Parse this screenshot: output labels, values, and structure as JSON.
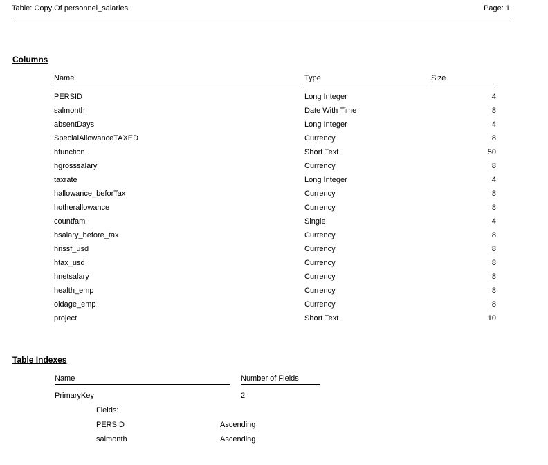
{
  "colors": {
    "text": "#000000",
    "background": "#ffffff",
    "rule": "#000000"
  },
  "page_header": {
    "title": "Table: Copy Of personnel_salaries",
    "page": "Page: 1"
  },
  "columns_section": {
    "heading": "Columns",
    "headers": {
      "name": "Name",
      "type": "Type",
      "size": "Size"
    },
    "rows": [
      {
        "name": "PERSID",
        "type": "Long Integer",
        "size": "4"
      },
      {
        "name": "salmonth",
        "type": "Date With Time",
        "size": "8"
      },
      {
        "name": "absentDays",
        "type": "Long Integer",
        "size": "4"
      },
      {
        "name": "SpecialAllowanceTAXED",
        "type": "Currency",
        "size": "8"
      },
      {
        "name": "hfunction",
        "type": "Short Text",
        "size": "50"
      },
      {
        "name": "hgrosssalary",
        "type": "Currency",
        "size": "8"
      },
      {
        "name": "taxrate",
        "type": "Long Integer",
        "size": "4"
      },
      {
        "name": "hallowance_beforTax",
        "type": "Currency",
        "size": "8"
      },
      {
        "name": "hotherallowance",
        "type": "Currency",
        "size": "8"
      },
      {
        "name": "countfam",
        "type": "Single",
        "size": "4"
      },
      {
        "name": "hsalary_before_tax",
        "type": "Currency",
        "size": "8"
      },
      {
        "name": "hnssf_usd",
        "type": "Currency",
        "size": "8"
      },
      {
        "name": "htax_usd",
        "type": "Currency",
        "size": "8"
      },
      {
        "name": "hnetsalary",
        "type": "Currency",
        "size": "8"
      },
      {
        "name": "health_emp",
        "type": "Currency",
        "size": "8"
      },
      {
        "name": "oldage_emp",
        "type": "Currency",
        "size": "8"
      },
      {
        "name": "project",
        "type": "Short Text",
        "size": "10"
      }
    ]
  },
  "indexes_section": {
    "heading": "Table Indexes",
    "headers": {
      "name": "Name",
      "num_fields": "Number of Fields"
    },
    "indexes": [
      {
        "name": "PrimaryKey",
        "num_fields": "2",
        "fields_label": "Fields:",
        "fields": [
          {
            "name": "PERSID",
            "order": "Ascending"
          },
          {
            "name": "salmonth",
            "order": "Ascending"
          }
        ]
      }
    ]
  }
}
